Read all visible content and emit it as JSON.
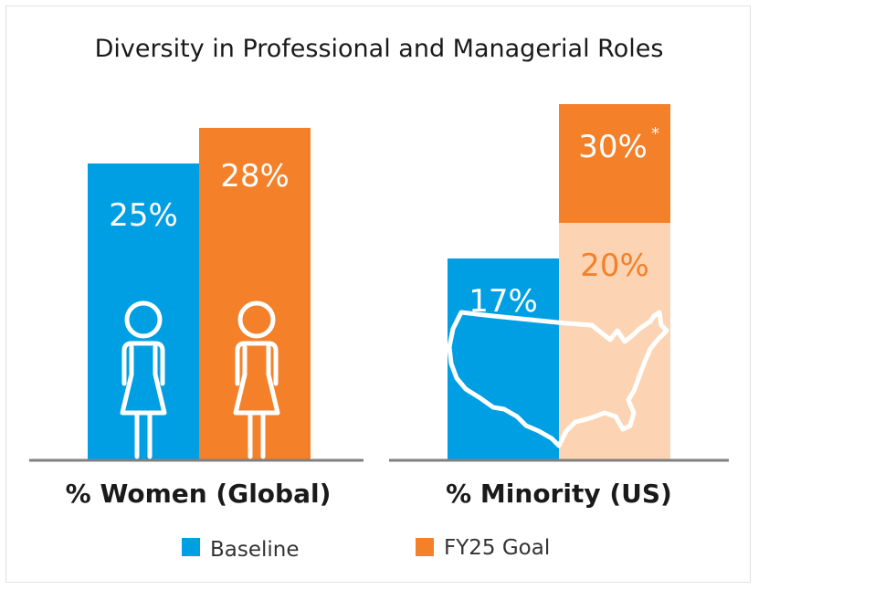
{
  "chart_data": {
    "type": "bar",
    "title": "Diversity in Professional and Managerial Roles",
    "categories": [
      "% Women (Global)",
      "% Minority (US)"
    ],
    "series": [
      {
        "name": "Baseline",
        "values": [
          25,
          17
        ],
        "labels": [
          "25%",
          "17%"
        ]
      },
      {
        "name": "FY25 Goal",
        "values": [
          28,
          30
        ],
        "labels": [
          "28%",
          "30%"
        ],
        "extra_labels": [
          "",
          "20%"
        ],
        "extra_values": [
          null,
          20
        ],
        "footnote_mark": "*"
      }
    ],
    "ylim": [
      0,
      32
    ],
    "grid": false,
    "legend_position": "bottom-center",
    "colors": {
      "baseline": "#009fe3",
      "goal": "#f4812a",
      "goal_light": "#fcd4b3",
      "axis": "#808080"
    },
    "icons": [
      "woman-icon",
      "woman-icon",
      "us-map-icon"
    ]
  }
}
